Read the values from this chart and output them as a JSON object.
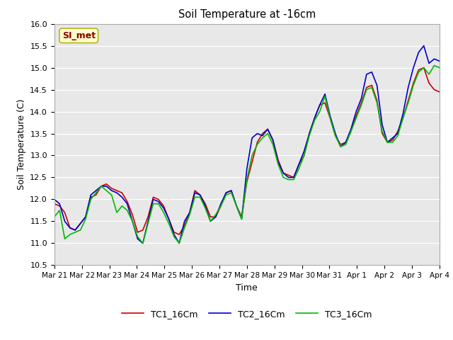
{
  "title": "Soil Temperature at -16cm",
  "xlabel": "Time",
  "ylabel": "Soil Temperature (C)",
  "ylim": [
    10.5,
    16.0
  ],
  "yticks": [
    10.5,
    11.0,
    11.5,
    12.0,
    12.5,
    13.0,
    13.5,
    14.0,
    14.5,
    15.0,
    15.5,
    16.0
  ],
  "xtick_labels": [
    "Mar 21",
    "Mar 22",
    "Mar 23",
    "Mar 24",
    "Mar 25",
    "Mar 26",
    "Mar 27",
    "Mar 28",
    "Mar 29",
    "Mar 30",
    "Mar 31",
    "Apr 1",
    "Apr 2",
    "Apr 3",
    "Apr 4"
  ],
  "colors": {
    "TC1": "#cc0000",
    "TC2": "#0000cc",
    "TC3": "#00bb00"
  },
  "legend_labels": [
    "TC1_16Cm",
    "TC2_16Cm",
    "TC3_16Cm"
  ],
  "annotation_text": "SI_met",
  "annotation_color": "#8b0000",
  "annotation_bg": "#ffffcc",
  "fig_bg": "#ffffff",
  "plot_bg": "#e8e8e8",
  "TC1_16Cm": [
    11.9,
    11.85,
    11.7,
    11.35,
    11.3,
    11.45,
    11.6,
    12.05,
    12.1,
    12.3,
    12.35,
    12.25,
    12.2,
    12.15,
    11.95,
    11.65,
    11.25,
    11.3,
    11.6,
    12.05,
    12.0,
    11.85,
    11.55,
    11.25,
    11.2,
    11.4,
    11.7,
    12.2,
    12.1,
    11.9,
    11.6,
    11.6,
    11.85,
    12.15,
    12.2,
    11.85,
    11.6,
    12.4,
    12.85,
    13.3,
    13.5,
    13.6,
    13.35,
    12.9,
    12.6,
    12.55,
    12.5,
    12.8,
    13.0,
    13.5,
    13.85,
    14.15,
    14.2,
    13.85,
    13.45,
    13.25,
    13.3,
    13.55,
    13.9,
    14.2,
    14.55,
    14.6,
    14.25,
    13.5,
    13.3,
    13.35,
    13.55,
    13.85,
    14.25,
    14.65,
    14.95,
    15.0,
    14.65,
    14.5,
    14.45
  ],
  "TC2_16Cm": [
    12.0,
    11.9,
    11.5,
    11.35,
    11.3,
    11.45,
    11.6,
    12.1,
    12.2,
    12.3,
    12.3,
    12.2,
    12.15,
    12.05,
    11.9,
    11.5,
    11.1,
    11.0,
    11.5,
    12.0,
    11.95,
    11.8,
    11.55,
    11.2,
    11.0,
    11.5,
    11.7,
    12.15,
    12.1,
    11.85,
    11.5,
    11.6,
    11.9,
    12.15,
    12.2,
    11.85,
    11.55,
    12.7,
    13.4,
    13.5,
    13.45,
    13.6,
    13.35,
    12.85,
    12.6,
    12.5,
    12.5,
    12.8,
    13.1,
    13.5,
    13.85,
    14.15,
    14.4,
    13.9,
    13.5,
    13.2,
    13.3,
    13.6,
    14.0,
    14.3,
    14.85,
    14.9,
    14.6,
    13.7,
    13.3,
    13.4,
    13.5,
    13.95,
    14.55,
    15.0,
    15.35,
    15.5,
    15.1,
    15.2,
    15.15
  ],
  "TC3_16Cm": [
    11.6,
    11.75,
    11.1,
    11.2,
    11.25,
    11.3,
    11.55,
    12.0,
    12.15,
    12.3,
    12.2,
    12.1,
    11.7,
    11.85,
    11.75,
    11.5,
    11.15,
    11.0,
    11.45,
    11.9,
    11.9,
    11.7,
    11.45,
    11.15,
    11.0,
    11.35,
    11.65,
    12.05,
    12.05,
    11.8,
    11.5,
    11.65,
    11.85,
    12.1,
    12.15,
    11.85,
    11.55,
    12.45,
    13.0,
    13.25,
    13.4,
    13.5,
    13.25,
    12.8,
    12.5,
    12.45,
    12.45,
    12.7,
    13.0,
    13.45,
    13.8,
    14.0,
    14.35,
    13.85,
    13.45,
    13.2,
    13.25,
    13.55,
    13.85,
    14.15,
    14.5,
    14.55,
    14.2,
    13.55,
    13.3,
    13.3,
    13.45,
    13.85,
    14.2,
    14.6,
    14.9,
    15.0,
    14.85,
    15.05,
    15.0
  ]
}
